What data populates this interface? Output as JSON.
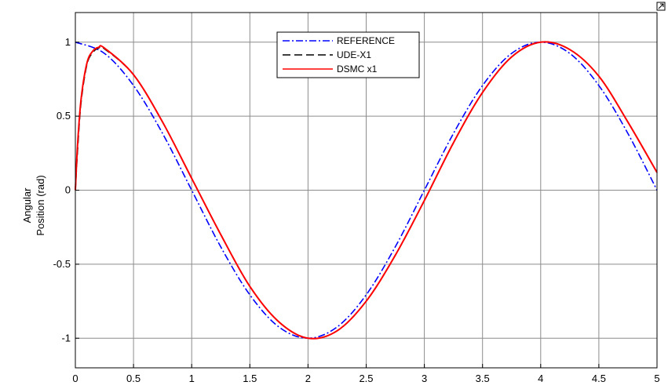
{
  "chart_data": {
    "type": "line",
    "title": "",
    "xlabel": "",
    "ylabel": "Angular Position (rad)",
    "ylabel_lines": [
      "Angular",
      "Position (rad)"
    ],
    "xlim": [
      0,
      5
    ],
    "ylim": [
      -1.2,
      1.2
    ],
    "xticks": [
      0,
      0.5,
      1,
      1.5,
      2,
      2.5,
      3,
      3.5,
      4,
      4.5,
      5
    ],
    "xtick_labels": [
      "0",
      "0.5",
      "1",
      "1.5",
      "2",
      "2.5",
      "3",
      "3.5",
      "4",
      "4.5",
      "5"
    ],
    "yticks": [
      1,
      0.5,
      0,
      -0.5,
      -1
    ],
    "ytick_labels": [
      "1",
      "0.5",
      "0",
      "-0.5",
      "-1"
    ],
    "grid": true,
    "legend_position": "top-center",
    "series": [
      {
        "name": "REFERENCE",
        "color": "#0000ff",
        "style": "dash-dot",
        "x": [
          0,
          0.25,
          0.5,
          0.75,
          1,
          1.25,
          1.5,
          1.75,
          2,
          2.25,
          2.5,
          2.75,
          3,
          3.25,
          3.5,
          3.75,
          4,
          4.25,
          4.5,
          4.75,
          5
        ],
        "y": [
          1.0,
          0.924,
          0.707,
          0.383,
          0.0,
          -0.383,
          -0.707,
          -0.924,
          -1.0,
          -0.924,
          -0.707,
          -0.383,
          0.0,
          0.383,
          0.707,
          0.924,
          1.0,
          0.924,
          0.707,
          0.383,
          0.0
        ]
      },
      {
        "name": "UDE-X1",
        "color": "#000000",
        "style": "dashed",
        "x": [
          0,
          0.02,
          0.05,
          0.1,
          0.15,
          0.2,
          0.25,
          0.5,
          0.75,
          1,
          1.25,
          1.5,
          1.75,
          2,
          2.25,
          2.5,
          2.75,
          3,
          3.25,
          3.5,
          3.75,
          4,
          4.25,
          4.5,
          4.75,
          5
        ],
        "y": [
          0.0,
          0.28,
          0.6,
          0.85,
          0.93,
          0.96,
          0.955,
          0.78,
          0.46,
          0.08,
          -0.3,
          -0.65,
          -0.89,
          -1.0,
          -0.95,
          -0.75,
          -0.44,
          -0.07,
          0.32,
          0.66,
          0.9,
          1.0,
          0.95,
          0.77,
          0.46,
          0.12
        ]
      },
      {
        "name": "DSMC x1",
        "color": "#ff0000",
        "style": "solid",
        "x": [
          0,
          0.02,
          0.05,
          0.1,
          0.15,
          0.2,
          0.25,
          0.5,
          0.75,
          1,
          1.25,
          1.5,
          1.75,
          2,
          2.25,
          2.5,
          2.75,
          3,
          3.25,
          3.5,
          3.75,
          4,
          4.25,
          4.5,
          4.75,
          5
        ],
        "y": [
          0.0,
          0.32,
          0.62,
          0.86,
          0.94,
          0.965,
          0.96,
          0.78,
          0.46,
          0.08,
          -0.3,
          -0.65,
          -0.89,
          -1.0,
          -0.95,
          -0.75,
          -0.44,
          -0.07,
          0.32,
          0.66,
          0.9,
          1.0,
          0.95,
          0.77,
          0.46,
          0.12
        ]
      }
    ]
  }
}
